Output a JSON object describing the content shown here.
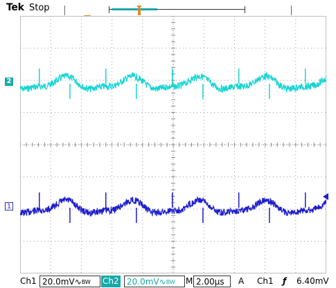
{
  "header": {
    "brand": "Tek",
    "acq_state": "Stop"
  },
  "channels": {
    "ch2": {
      "marker": "2",
      "color": "#17d4d4"
    },
    "ch1": {
      "marker": "1",
      "color": "#1c1ccf"
    }
  },
  "status": {
    "ch1_label": "Ch1",
    "ch1_scale": "20.0mV",
    "ch1_coupling": "∿",
    "ch1_bw": "BW",
    "ch2_label": "Ch2",
    "ch2_scale": "20.0mV",
    "ch2_coupling": "∿",
    "ch2_bw": "BW",
    "timebase_label": "M",
    "timebase": "2.00µs",
    "trigger_mode": "A",
    "trigger_source": "Ch1",
    "trigger_slope": "ƒ",
    "trigger_level": "6.40mV"
  }
}
